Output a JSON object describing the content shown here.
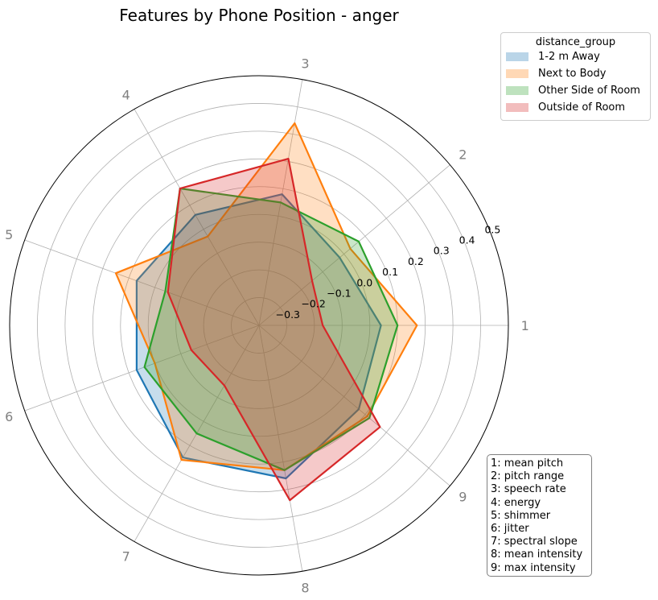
{
  "chart_data": {
    "type": "radar",
    "title": "Features by Phone Position - anger",
    "angular_labels": [
      "1",
      "2",
      "3",
      "4",
      "5",
      "6",
      "7",
      "8",
      "9"
    ],
    "radial_ticks": [
      -0.3,
      -0.2,
      -0.1,
      0.0,
      0.1,
      0.2,
      0.3,
      0.4,
      0.5
    ],
    "radial_tick_labels": [
      "−0.3",
      "−0.2",
      "−0.1",
      "0.0",
      "0.1",
      "0.2",
      "0.3",
      "0.4",
      "0.5"
    ],
    "rlim": [
      -0.4,
      0.5
    ],
    "grid": true,
    "legend": {
      "title": "distance_group",
      "placement": "outside upper right"
    },
    "series": [
      {
        "name": "1-2 m Away",
        "color": "#1f77b4",
        "values": [
          0.04,
          -0.02,
          0.08,
          0.06,
          0.07,
          0.07,
          0.15,
          0.16,
          0.07
        ]
      },
      {
        "name": "Next to Body",
        "color": "#ff7f0e",
        "values": [
          0.17,
          0.03,
          0.34,
          -0.03,
          0.15,
          0.0,
          0.16,
          0.13,
          0.11
        ]
      },
      {
        "name": "Other Side of Room",
        "color": "#2ca02c",
        "values": [
          0.1,
          0.07,
          0.05,
          0.17,
          -0.04,
          0.04,
          0.05,
          0.13,
          0.12
        ]
      },
      {
        "name": "Outside of Room",
        "color": "#d62728",
        "values": [
          -0.17,
          -0.15,
          0.21,
          0.17,
          -0.05,
          -0.14,
          -0.15,
          0.24,
          0.17
        ]
      }
    ],
    "key_entries": [
      "1: mean pitch",
      "2: pitch range",
      "3: speech rate",
      "4: energy",
      "5: shimmer",
      "6: jitter",
      "7: spectral slope",
      "8: mean intensity",
      "9: max intensity"
    ]
  }
}
